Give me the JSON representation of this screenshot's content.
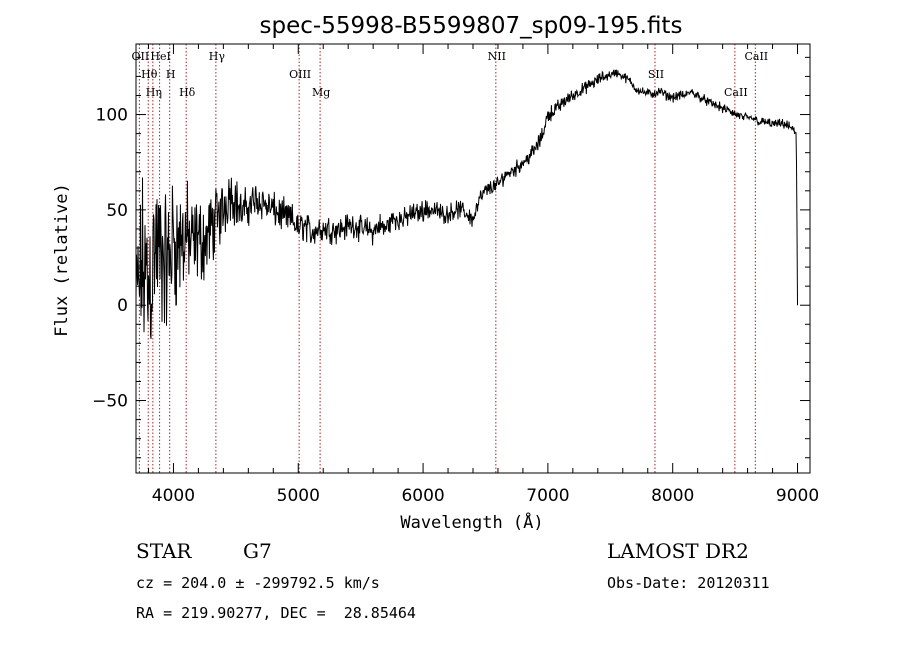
{
  "chart_data": {
    "type": "line",
    "title": "spec-55998-B5599807_sp09-195.fits",
    "xlabel": "Wavelength (Å)",
    "ylabel": "Flux (relative)",
    "xlim": [
      3700,
      9100
    ],
    "ylim": [
      -88,
      137
    ],
    "x_ticks": [
      4000,
      5000,
      6000,
      7000,
      8000,
      9000
    ],
    "y_ticks": [
      -50,
      0,
      50,
      100
    ],
    "grid": false,
    "legend": "none",
    "series": [
      {
        "x": [
          3700,
          3750,
          3800,
          3850,
          3900,
          3950,
          4000,
          4050,
          4100,
          4150,
          4200,
          4250,
          4300,
          4350,
          4400,
          4450,
          4500,
          4550,
          4600,
          4650,
          4700,
          4750,
          4800,
          4850,
          4900,
          4950,
          5000,
          5050,
          5100,
          5150,
          5200,
          5250,
          5300,
          5350,
          5400,
          5450,
          5500,
          5550,
          5600,
          5650,
          5700,
          5750,
          5800,
          5850,
          5900,
          5950,
          6000,
          6050,
          6100,
          6150,
          6200,
          6250,
          6300,
          6350,
          6400,
          6450,
          6500,
          6550,
          6600,
          6650,
          6700,
          6750,
          6800,
          6850,
          6900,
          6950,
          7000,
          7050,
          7100,
          7150,
          7200,
          7250,
          7300,
          7350,
          7400,
          7450,
          7500,
          7550,
          7600,
          7650,
          7700,
          7750,
          7800,
          7850,
          7900,
          7950,
          8000,
          8050,
          8100,
          8150,
          8200,
          8250,
          8300,
          8350,
          8400,
          8450,
          8500,
          8550,
          8600,
          8650,
          8700,
          8750,
          8800,
          8850,
          8900,
          8950,
          8990,
          8995,
          9000
        ],
        "y": [
          5,
          20,
          10,
          30,
          25,
          20,
          35,
          30,
          38,
          30,
          35,
          33,
          40,
          45,
          50,
          60,
          55,
          48,
          52,
          55,
          55,
          52,
          50,
          48,
          46,
          45,
          40,
          42,
          38,
          40,
          40,
          40,
          40,
          40,
          42,
          42,
          40,
          40,
          38,
          42,
          40,
          45,
          45,
          45,
          48,
          48,
          50,
          50,
          50,
          48,
          48,
          50,
          50,
          48,
          45,
          55,
          60,
          62,
          63,
          68,
          70,
          72,
          75,
          78,
          82,
          88,
          100,
          102,
          105,
          108,
          110,
          112,
          114,
          116,
          118,
          120,
          121,
          122,
          120,
          118,
          114,
          112,
          111,
          111,
          112,
          110,
          109,
          110,
          110,
          112,
          110,
          108,
          106,
          105,
          103,
          102,
          100,
          99,
          98,
          98,
          96,
          96,
          95,
          95,
          95,
          93,
          90,
          50,
          0
        ],
        "noise_amplitude": [
          30,
          60,
          60,
          55,
          50,
          45,
          45,
          40,
          35,
          30,
          28,
          26,
          24,
          22,
          20,
          18,
          16,
          14,
          13,
          12,
          12,
          11,
          11,
          11,
          11,
          10,
          10,
          10,
          10,
          9,
          9,
          9,
          9,
          9,
          8,
          8,
          8,
          8,
          8,
          8,
          8,
          7,
          7,
          7,
          7,
          7,
          7,
          7,
          6,
          6,
          6,
          6,
          6,
          6,
          6,
          6,
          5,
          5,
          5,
          5,
          5,
          5,
          5,
          5,
          5,
          5,
          5,
          5,
          5,
          4,
          4,
          4,
          4,
          4,
          4,
          4,
          3,
          3,
          3,
          3,
          3,
          3,
          3,
          3,
          3,
          3,
          3,
          3,
          3,
          3,
          3,
          3,
          3,
          3,
          3,
          3,
          3,
          3,
          3,
          3,
          3,
          3,
          3,
          3,
          3,
          3,
          2,
          0,
          0
        ]
      }
    ],
    "spectral_lines": [
      {
        "wavelength": 3727,
        "label": "OII"
      },
      {
        "wavelength": 3798,
        "label": "Hθ"
      },
      {
        "wavelength": 3835,
        "label": "Hη"
      },
      {
        "wavelength": 3889,
        "label": "HeI"
      },
      {
        "wavelength": 3970,
        "label": "H"
      },
      {
        "wavelength": 4102,
        "label": "Hδ"
      },
      {
        "wavelength": 4340,
        "label": "Hγ"
      },
      {
        "wavelength": 5007,
        "label": "OIII"
      },
      {
        "wavelength": 5175,
        "label": "Mg"
      },
      {
        "wavelength": 6583,
        "label": "NII"
      },
      {
        "wavelength": 7858,
        "label": "SII"
      },
      {
        "wavelength": 8498,
        "label": "CaII"
      },
      {
        "wavelength": 8662,
        "label": "CaII"
      }
    ]
  },
  "info": {
    "object_class": "STAR",
    "subclass": "G7",
    "survey": "LAMOST DR2",
    "cz_line": "cz = 204.0 ± -299792.5 km/s",
    "obs_date": "Obs-Date: 20120311",
    "coords": "RA = 219.90277, DEC =  28.85464"
  },
  "colors": {
    "axis": "#000000",
    "spectrum": "#000000",
    "line_marker": "#b22222"
  }
}
